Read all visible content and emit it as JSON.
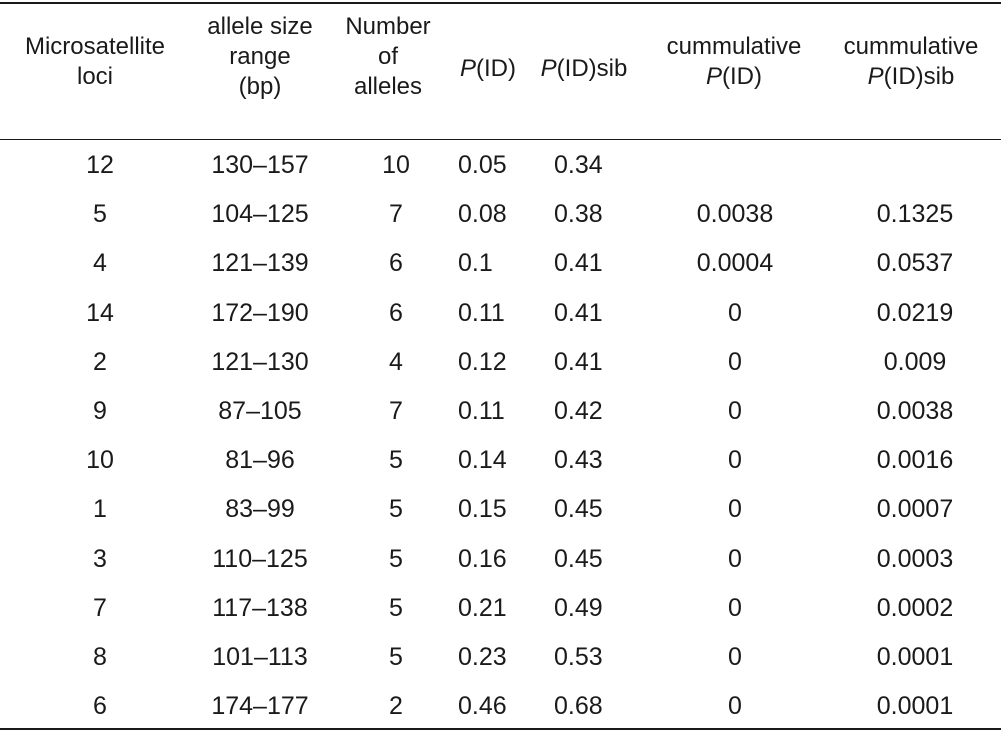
{
  "header": {
    "loci": [
      "Microsatellite",
      "loci"
    ],
    "range": [
      "allele size",
      "range",
      "(bp)"
    ],
    "number": [
      "Number",
      "of",
      "alleles"
    ],
    "pid": "P(ID)",
    "pidsib": "P(ID)sib",
    "cum_pid": [
      "cummulative",
      "P(ID)"
    ],
    "cum_pidsib": [
      "cummulative",
      "P(ID)sib"
    ]
  },
  "rows": [
    {
      "loci": "12",
      "range": "130–157",
      "num": "10",
      "pid": "0.05",
      "pidsib": "0.34",
      "cum_pid": "",
      "cum_pidsib": ""
    },
    {
      "loci": "5",
      "range": "104–125",
      "num": "7",
      "pid": "0.08",
      "pidsib": "0.38",
      "cum_pid": "0.0038",
      "cum_pidsib": "0.1325"
    },
    {
      "loci": "4",
      "range": "121–139",
      "num": "6",
      "pid": "0.1",
      "pidsib": "0.41",
      "cum_pid": "0.0004",
      "cum_pidsib": "0.0537"
    },
    {
      "loci": "14",
      "range": "172–190",
      "num": "6",
      "pid": "0.11",
      "pidsib": "0.41",
      "cum_pid": "0",
      "cum_pidsib": "0.0219"
    },
    {
      "loci": "2",
      "range": "121–130",
      "num": "4",
      "pid": "0.12",
      "pidsib": "0.41",
      "cum_pid": "0",
      "cum_pidsib": "0.009"
    },
    {
      "loci": "9",
      "range": "87–105",
      "num": "7",
      "pid": "0.11",
      "pidsib": "0.42",
      "cum_pid": "0",
      "cum_pidsib": "0.0038"
    },
    {
      "loci": "10",
      "range": "81–96",
      "num": "5",
      "pid": "0.14",
      "pidsib": "0.43",
      "cum_pid": "0",
      "cum_pidsib": "0.0016"
    },
    {
      "loci": "1",
      "range": "83–99",
      "num": "5",
      "pid": "0.15",
      "pidsib": "0.45",
      "cum_pid": "0",
      "cum_pidsib": "0.0007"
    },
    {
      "loci": "3",
      "range": "110–125",
      "num": "5",
      "pid": "0.16",
      "pidsib": "0.45",
      "cum_pid": "0",
      "cum_pidsib": "0.0003"
    },
    {
      "loci": "7",
      "range": "117–138",
      "num": "5",
      "pid": "0.21",
      "pidsib": "0.49",
      "cum_pid": "0",
      "cum_pidsib": "0.0002"
    },
    {
      "loci": "8",
      "range": "101–113",
      "num": "5",
      "pid": "0.23",
      "pidsib": "0.53",
      "cum_pid": "0",
      "cum_pidsib": "0.0001"
    },
    {
      "loci": "6",
      "range": "174–177",
      "num": "2",
      "pid": "0.46",
      "pidsib": "0.68",
      "cum_pid": "0",
      "cum_pidsib": "0.0001"
    }
  ]
}
